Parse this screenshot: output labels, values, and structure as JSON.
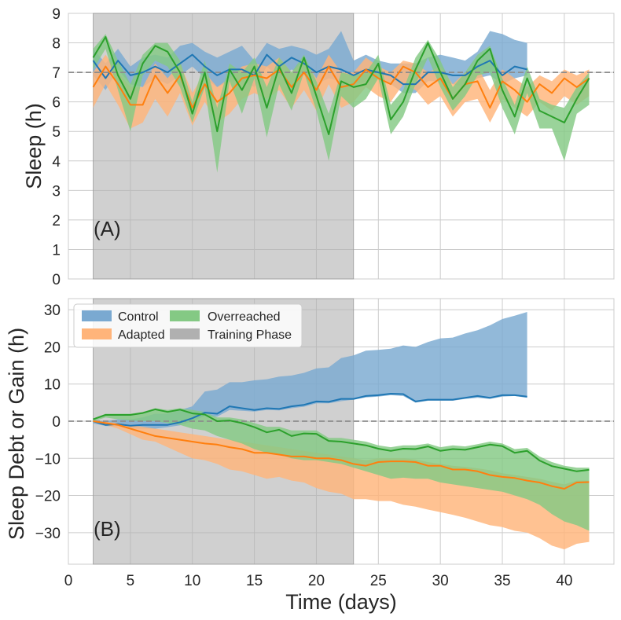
{
  "colors": {
    "control": "#1f77b4",
    "control_band": "#7aa9d1",
    "adapted": "#ff7f0e",
    "adapted_band": "#ffb47a",
    "overreached": "#2ca02c",
    "overreached_band": "#84c984",
    "training": "#b0b0b0",
    "grid": "#cccccc",
    "reference_line": "#8c8c8c"
  },
  "chart_data": [
    {
      "type": "area",
      "panel_label": "(A)",
      "xlabel": "",
      "ylabel": "Sleep (h)",
      "xlim": [
        0,
        44
      ],
      "ylim": [
        0,
        9
      ],
      "yticks": [
        "0",
        "1",
        "2",
        "3",
        "4",
        "5",
        "6",
        "7",
        "8",
        "9"
      ],
      "grid": true,
      "reference_line": 7,
      "training_phase": [
        2,
        23
      ],
      "series": [
        {
          "name": "Control",
          "x": [
            2,
            3,
            4,
            5,
            6,
            7,
            8,
            9,
            10,
            11,
            12,
            13,
            14,
            15,
            16,
            17,
            18,
            19,
            20,
            21,
            22,
            23,
            24,
            25,
            26,
            27,
            28,
            29,
            30,
            31,
            32,
            33,
            34,
            35,
            36,
            37
          ],
          "mean": [
            7.4,
            6.8,
            7.4,
            6.9,
            7.0,
            7.2,
            7.0,
            7.3,
            7.6,
            7.2,
            6.9,
            7.1,
            7.1,
            6.9,
            7.6,
            7.2,
            7.5,
            7.3,
            7.0,
            7.2,
            7.1,
            6.9,
            7.1,
            7.0,
            6.9,
            6.6,
            6.6,
            7.0,
            7.0,
            6.9,
            6.9,
            7.2,
            7.4,
            6.9,
            7.2,
            7.1
          ],
          "lower": [
            6.9,
            6.4,
            7.1,
            6.6,
            6.5,
            6.8,
            6.6,
            6.9,
            7.2,
            6.8,
            6.5,
            6.7,
            6.7,
            6.5,
            7.2,
            6.8,
            7.1,
            6.9,
            6.6,
            6.8,
            6.7,
            6.6,
            6.7,
            6.8,
            6.6,
            6.3,
            6.3,
            6.7,
            6.7,
            6.6,
            6.5,
            6.8,
            6.9,
            6.6,
            6.8,
            6.9
          ],
          "upper": [
            7.8,
            7.3,
            7.8,
            7.2,
            7.5,
            7.6,
            7.5,
            7.9,
            8.0,
            7.7,
            7.5,
            7.7,
            7.9,
            7.4,
            8.0,
            7.8,
            7.9,
            7.8,
            7.6,
            7.8,
            8.4,
            7.4,
            7.6,
            7.4,
            7.3,
            7.3,
            7.3,
            7.5,
            7.6,
            7.5,
            7.4,
            7.7,
            8.4,
            8.3,
            8.1,
            8.0
          ]
        },
        {
          "name": "Adapted",
          "x": [
            2,
            3,
            4,
            5,
            6,
            7,
            8,
            9,
            10,
            11,
            12,
            13,
            14,
            15,
            16,
            17,
            18,
            19,
            20,
            21,
            22,
            23,
            24,
            25,
            26,
            27,
            28,
            29,
            30,
            31,
            32,
            33,
            34,
            35,
            36,
            37,
            38,
            39,
            40,
            41,
            42
          ],
          "mean": [
            6.5,
            7.2,
            6.6,
            5.9,
            5.9,
            6.9,
            6.3,
            6.9,
            5.8,
            6.6,
            6.0,
            6.3,
            6.8,
            6.9,
            6.8,
            7.1,
            6.5,
            7.0,
            6.4,
            7.2,
            6.5,
            6.6,
            7.1,
            6.8,
            6.6,
            7.2,
            7.0,
            6.5,
            6.8,
            6.1,
            6.6,
            6.7,
            5.8,
            6.7,
            6.4,
            6.0,
            6.6,
            6.3,
            6.8,
            6.5,
            6.8
          ],
          "lower": [
            5.8,
            6.6,
            5.9,
            5.1,
            5.3,
            6.1,
            5.5,
            6.3,
            5.2,
            6.0,
            5.3,
            5.6,
            6.1,
            6.3,
            6.1,
            6.4,
            5.8,
            6.4,
            5.7,
            6.6,
            5.8,
            6.0,
            6.5,
            6.2,
            6.0,
            6.6,
            6.4,
            5.9,
            6.2,
            5.5,
            6.0,
            6.1,
            5.3,
            6.1,
            5.8,
            5.5,
            6.0,
            5.7,
            6.2,
            5.9,
            6.2
          ],
          "upper": [
            7.0,
            7.6,
            7.0,
            6.5,
            6.5,
            7.3,
            6.8,
            7.3,
            6.3,
            7.0,
            6.5,
            6.8,
            7.2,
            7.3,
            7.2,
            7.5,
            7.0,
            7.4,
            6.8,
            7.6,
            7.0,
            7.0,
            7.5,
            7.2,
            7.0,
            7.4,
            7.3,
            7.0,
            7.2,
            6.6,
            7.0,
            7.2,
            6.4,
            7.1,
            6.8,
            6.5,
            6.9,
            6.7,
            7.1,
            6.9,
            7.1
          ]
        },
        {
          "name": "Overreached",
          "x": [
            2,
            3,
            4,
            5,
            6,
            7,
            8,
            9,
            10,
            11,
            12,
            13,
            14,
            15,
            16,
            17,
            18,
            19,
            20,
            21,
            22,
            23,
            24,
            25,
            26,
            27,
            28,
            29,
            30,
            31,
            32,
            33,
            34,
            35,
            36,
            37,
            38,
            39,
            40,
            41,
            42
          ],
          "mean": [
            7.5,
            8.2,
            6.9,
            6.1,
            7.3,
            7.9,
            7.7,
            7.0,
            5.6,
            7.0,
            5.0,
            7.1,
            6.4,
            7.2,
            5.8,
            7.2,
            6.3,
            7.5,
            6.2,
            4.9,
            6.7,
            6.5,
            6.6,
            7.3,
            5.4,
            6.0,
            7.1,
            8.0,
            7.0,
            6.1,
            6.6,
            7.4,
            7.8,
            6.4,
            5.5,
            6.8,
            5.7,
            5.5,
            5.3,
            6.1,
            6.8
          ],
          "lower": [
            7.1,
            7.8,
            6.4,
            5.0,
            6.9,
            7.4,
            7.2,
            6.5,
            5.3,
            6.5,
            3.6,
            6.7,
            5.6,
            6.8,
            4.8,
            6.6,
            5.7,
            7.0,
            5.7,
            4.0,
            6.2,
            5.8,
            6.1,
            6.8,
            4.9,
            5.5,
            6.6,
            7.5,
            6.5,
            5.7,
            6.2,
            6.9,
            7.0,
            5.8,
            4.9,
            6.3,
            5.1,
            5.1,
            4.0,
            5.6,
            5.9
          ],
          "upper": [
            7.8,
            8.3,
            7.4,
            6.6,
            7.6,
            8.0,
            8.0,
            7.4,
            6.0,
            7.4,
            5.8,
            7.3,
            7.0,
            7.5,
            6.5,
            7.5,
            7.0,
            7.6,
            6.7,
            5.6,
            7.0,
            6.9,
            7.0,
            7.6,
            5.9,
            6.4,
            7.5,
            8.1,
            7.4,
            6.5,
            7.0,
            7.6,
            7.9,
            6.8,
            5.9,
            7.2,
            6.1,
            5.9,
            5.8,
            6.5,
            7.0
          ]
        }
      ]
    },
    {
      "type": "area",
      "panel_label": "(B)",
      "xlabel": "Time (days)",
      "ylabel": "Sleep Debt or Gain (h)",
      "xlim": [
        0,
        44
      ],
      "ylim": [
        -38.5,
        33
      ],
      "xticks": [
        "0",
        "5",
        "10",
        "15",
        "20",
        "25",
        "30",
        "35",
        "40"
      ],
      "yticks": [
        "30",
        "20",
        "10",
        "0",
        "−10",
        "−20",
        "−30"
      ],
      "grid": true,
      "reference_line": 0,
      "training_phase": [
        2,
        23
      ],
      "legend": {
        "placement": "top-left",
        "entries": [
          "Control",
          "Adapted",
          "Overreached",
          "Training Phase"
        ]
      },
      "series": [
        {
          "name": "Control",
          "x": [
            2,
            3,
            4,
            5,
            6,
            7,
            8,
            9,
            10,
            11,
            12,
            13,
            14,
            15,
            16,
            17,
            18,
            19,
            20,
            21,
            22,
            23,
            24,
            25,
            26,
            27,
            28,
            29,
            30,
            31,
            32,
            33,
            34,
            35,
            36,
            37
          ],
          "mean": [
            0,
            -1,
            -0.8,
            -1.2,
            -1,
            -1,
            -1,
            -0.3,
            0.8,
            2.3,
            2,
            4,
            3.5,
            3,
            3.5,
            3.3,
            4,
            4.4,
            5.3,
            5.2,
            6,
            6,
            6.8,
            7,
            7.4,
            7.3,
            5.3,
            5.8,
            5.8,
            5.8,
            6.3,
            6.8,
            6.3,
            7,
            7,
            6.6
          ],
          "lower": [
            -0.6,
            -1.3,
            -1.4,
            -2,
            -2,
            -2,
            -1.6,
            -1.1,
            0,
            1.4,
            1.2,
            3,
            2.8,
            2.6,
            3,
            2.9,
            3.5,
            3.9,
            4.8,
            4.8,
            5.4,
            5.8,
            6.4,
            6.6,
            7,
            6.8,
            5,
            5.5,
            5.5,
            5.5,
            6,
            6.3,
            6,
            6.6,
            6.8,
            6.3
          ],
          "upper": [
            0.3,
            0,
            0.5,
            0.5,
            1,
            2,
            2,
            3,
            4,
            8,
            8.5,
            10.5,
            10.5,
            11,
            11.3,
            12,
            12.3,
            13,
            14.2,
            14.5,
            17,
            17.7,
            19,
            19.2,
            19.5,
            20.4,
            20,
            21.3,
            22.3,
            22.5,
            23.6,
            24.5,
            25.8,
            27.5,
            28.4,
            29.4
          ]
        },
        {
          "name": "Adapted",
          "x": [
            2,
            3,
            4,
            5,
            6,
            7,
            8,
            9,
            10,
            11,
            12,
            13,
            14,
            15,
            16,
            17,
            18,
            19,
            20,
            21,
            22,
            23,
            24,
            25,
            26,
            27,
            28,
            29,
            30,
            31,
            32,
            33,
            34,
            35,
            36,
            37,
            38,
            39,
            40,
            41,
            42
          ],
          "mean": [
            0,
            -0.5,
            -1,
            -2,
            -3,
            -4,
            -4.5,
            -5,
            -5.5,
            -6,
            -6.3,
            -7,
            -7.5,
            -8.5,
            -8.5,
            -9,
            -9.5,
            -9.5,
            -10,
            -10,
            -10.5,
            -11.5,
            -12,
            -11,
            -10.8,
            -10.8,
            -11,
            -12,
            -12,
            -13,
            -13,
            -13.5,
            -14.5,
            -15,
            -15.3,
            -16,
            -16.5,
            -17.5,
            -18.2,
            -16.5,
            -16.4
          ],
          "lower": [
            0,
            -1,
            -2,
            -3.5,
            -5,
            -5.5,
            -7,
            -8.5,
            -10,
            -10.5,
            -11.5,
            -13,
            -13.5,
            -14.5,
            -15.5,
            -15,
            -16,
            -16.5,
            -18,
            -19,
            -19.5,
            -21,
            -21,
            -21.5,
            -21.5,
            -22.5,
            -23,
            -23.8,
            -24.5,
            -25.2,
            -26,
            -27,
            -28,
            -28.5,
            -29.5,
            -30,
            -31.5,
            -33.5,
            -34.5,
            -33,
            -32.5
          ],
          "upper": [
            0,
            -0.2,
            -0.5,
            -1,
            -1.5,
            -2,
            -2.5,
            -3,
            -3.5,
            -4,
            -4.5,
            -5,
            -5.5,
            -6,
            -6.5,
            -7,
            -7.5,
            -8,
            -8.5,
            -9,
            -9.5,
            -10,
            -10.5,
            -10,
            -10,
            -10,
            -10.3,
            -11,
            -11.5,
            -12,
            -12.3,
            -12.7,
            -13.2,
            -14,
            -14.5,
            -15,
            -15.5,
            -16.3,
            -17,
            -16,
            -16
          ]
        },
        {
          "name": "Overreached",
          "x": [
            2,
            3,
            4,
            5,
            6,
            7,
            8,
            9,
            10,
            11,
            12,
            13,
            14,
            15,
            16,
            17,
            18,
            19,
            20,
            21,
            22,
            23,
            24,
            25,
            26,
            27,
            28,
            29,
            30,
            31,
            32,
            33,
            34,
            35,
            36,
            37,
            38,
            39,
            40,
            41,
            42
          ],
          "mean": [
            0.5,
            1.7,
            1.7,
            1.7,
            2.2,
            3.2,
            2.5,
            3.1,
            2.1,
            1.8,
            0,
            0.2,
            -0.5,
            -1.6,
            -3,
            -2.3,
            -4,
            -3.3,
            -3.4,
            -5.3,
            -5.5,
            -6,
            -6.5,
            -7.4,
            -8,
            -7.4,
            -7.5,
            -6.8,
            -8,
            -7.5,
            -7.7,
            -7,
            -6.3,
            -6.7,
            -8.5,
            -8,
            -10.6,
            -12.1,
            -12.8,
            -13.5,
            -13.1
          ],
          "lower": [
            0,
            1,
            0.5,
            0.2,
            0,
            0,
            -0.5,
            -1,
            -2,
            -2.5,
            -4,
            -5,
            -6,
            -7.5,
            -8.5,
            -9,
            -10,
            -10.5,
            -10.5,
            -11,
            -11.5,
            -12.5,
            -13.5,
            -14.5,
            -15.5,
            -15.2,
            -15.5,
            -15.5,
            -16.5,
            -17,
            -17.5,
            -18,
            -18.5,
            -19,
            -20,
            -21,
            -22.5,
            -25,
            -27,
            -28,
            -29.5
          ],
          "upper": [
            0.7,
            2,
            2,
            2,
            2.5,
            3.5,
            3,
            3.5,
            3,
            2.5,
            1,
            1,
            0.5,
            -0.5,
            -1.5,
            -1.5,
            -2.5,
            -2.5,
            -2.5,
            -4.5,
            -4.5,
            -5,
            -5.5,
            -6.5,
            -7,
            -6.5,
            -6.5,
            -6,
            -7,
            -6.5,
            -6.8,
            -6.2,
            -5.5,
            -6,
            -7.5,
            -7.2,
            -9.5,
            -11,
            -12,
            -12.5,
            -12.5
          ]
        }
      ]
    }
  ]
}
